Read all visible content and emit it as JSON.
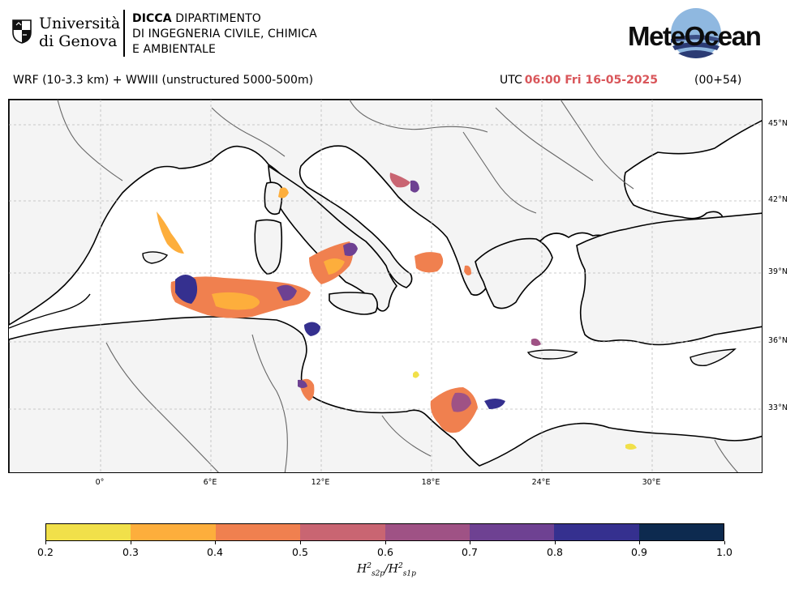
{
  "header": {
    "university_line1": "Università",
    "university_line2": "di Genova",
    "department_bold": "DICCA",
    "department_line1": "DIPARTIMENTO",
    "department_line2": "DI INGEGNERIA CIVILE, CHIMICA",
    "department_line3": "E AMBIENTALE",
    "brand": "MeteOcean"
  },
  "info": {
    "model": "WRF (10-3.3 km) + WWIII (unstructured 5000-500m)",
    "time_prefix": "UTC",
    "time_value": "06:00 Fri 16-05-2025",
    "lead": "(00+54)"
  },
  "map": {
    "lat_labels": [
      "45°N",
      "42°N",
      "39°N",
      "36°N",
      "33°N"
    ],
    "lon_labels": [
      "0°",
      "6°E",
      "12°E",
      "18°E",
      "24°E",
      "30°E"
    ],
    "land_color": "#f4f4f4",
    "sea_color": "#ffffff"
  },
  "colorbar": {
    "ticks": [
      "0.2",
      "0.3",
      "0.4",
      "0.5",
      "0.6",
      "0.7",
      "0.8",
      "0.9",
      "1.0"
    ],
    "colors": [
      "#f1e04a",
      "#fdae3c",
      "#f0804f",
      "#c96572",
      "#9f5285",
      "#6e4192",
      "#35308f",
      "#0d2a4f"
    ],
    "label_base": "H",
    "label_sup": "2",
    "label_sub1": "s2p",
    "label_sub2": "s1p"
  }
}
